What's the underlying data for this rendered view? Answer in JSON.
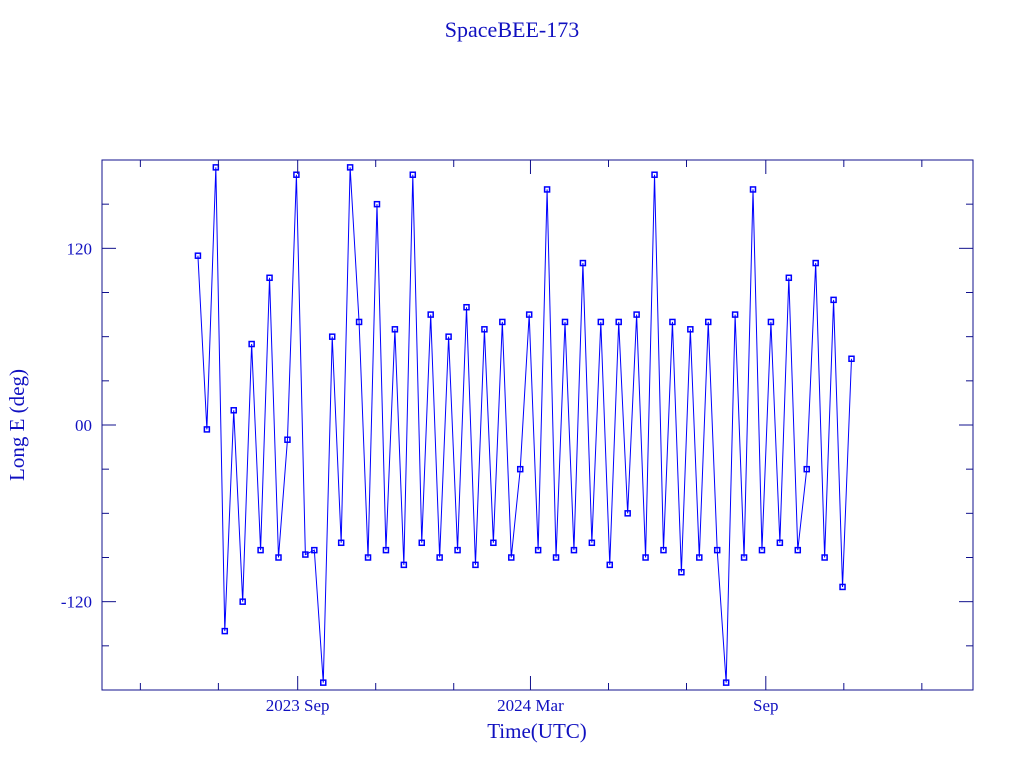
{
  "chart_data": {
    "type": "line",
    "title": "SpaceBEE-173",
    "xlabel": "Time(UTC)",
    "ylabel": "Long E (deg)",
    "xlim": [
      "2023-04-01",
      "2025-02-10"
    ],
    "ylim": [
      -180,
      180
    ],
    "x_ticks": [
      {
        "date": "2023-09-01",
        "label": "2023 Sep"
      },
      {
        "date": "2024-03-01",
        "label": "2024 Mar"
      },
      {
        "date": "2024-09-01",
        "label": "Sep"
      }
    ],
    "y_ticks": [
      {
        "value": 120,
        "label": "120"
      },
      {
        "value": 0,
        "label": "00"
      },
      {
        "value": -120,
        "label": "-120"
      }
    ],
    "grid": false,
    "marker": "square",
    "color": "#0000ff",
    "axis_color": "#10108c",
    "series": [
      {
        "x": [
          "2023-06-15",
          "2023-06-22",
          "2023-06-29",
          "2023-07-06",
          "2023-07-13",
          "2023-07-20",
          "2023-07-27",
          "2023-08-03",
          "2023-08-10",
          "2023-08-17",
          "2023-08-24",
          "2023-08-31",
          "2023-09-07",
          "2023-09-14",
          "2023-09-21",
          "2023-09-28",
          "2023-10-05",
          "2023-10-12",
          "2023-10-19",
          "2023-10-26",
          "2023-11-02",
          "2023-11-09",
          "2023-11-16",
          "2023-11-23",
          "2023-11-30",
          "2023-12-07",
          "2023-12-14",
          "2023-12-21",
          "2023-12-28",
          "2024-01-04",
          "2024-01-11",
          "2024-01-18",
          "2024-01-25",
          "2024-02-01",
          "2024-02-08",
          "2024-02-15",
          "2024-02-22",
          "2024-02-29",
          "2024-03-07",
          "2024-03-14",
          "2024-03-21",
          "2024-03-28",
          "2024-04-04",
          "2024-04-11",
          "2024-04-18",
          "2024-04-25",
          "2024-05-02",
          "2024-05-09",
          "2024-05-16",
          "2024-05-23",
          "2024-05-30",
          "2024-06-06",
          "2024-06-13",
          "2024-06-20",
          "2024-06-27",
          "2024-07-04",
          "2024-07-11",
          "2024-07-18",
          "2024-07-25",
          "2024-08-01",
          "2024-08-08",
          "2024-08-15",
          "2024-08-22",
          "2024-08-29",
          "2024-09-05",
          "2024-09-12",
          "2024-09-19",
          "2024-09-26",
          "2024-10-03",
          "2024-10-10",
          "2024-10-17",
          "2024-10-24",
          "2024-10-31",
          "2024-11-07"
        ],
        "y": [
          115,
          -3,
          175,
          -140,
          10,
          -120,
          55,
          -85,
          100,
          -90,
          -10,
          170,
          -88,
          -85,
          -175,
          60,
          -80,
          175,
          70,
          -90,
          150,
          -85,
          65,
          -95,
          170,
          -80,
          75,
          -90,
          60,
          -85,
          80,
          -95,
          65,
          -80,
          70,
          -90,
          -30,
          75,
          -85,
          160,
          -90,
          70,
          -85,
          110,
          -80,
          70,
          -95,
          70,
          -60,
          75,
          -90,
          170,
          -85,
          70,
          -100,
          65,
          -90,
          70,
          -85,
          -175,
          75,
          -90,
          160,
          -85,
          70,
          -80,
          100,
          -85,
          -30,
          110,
          -90,
          85,
          -110,
          45
        ]
      }
    ]
  }
}
